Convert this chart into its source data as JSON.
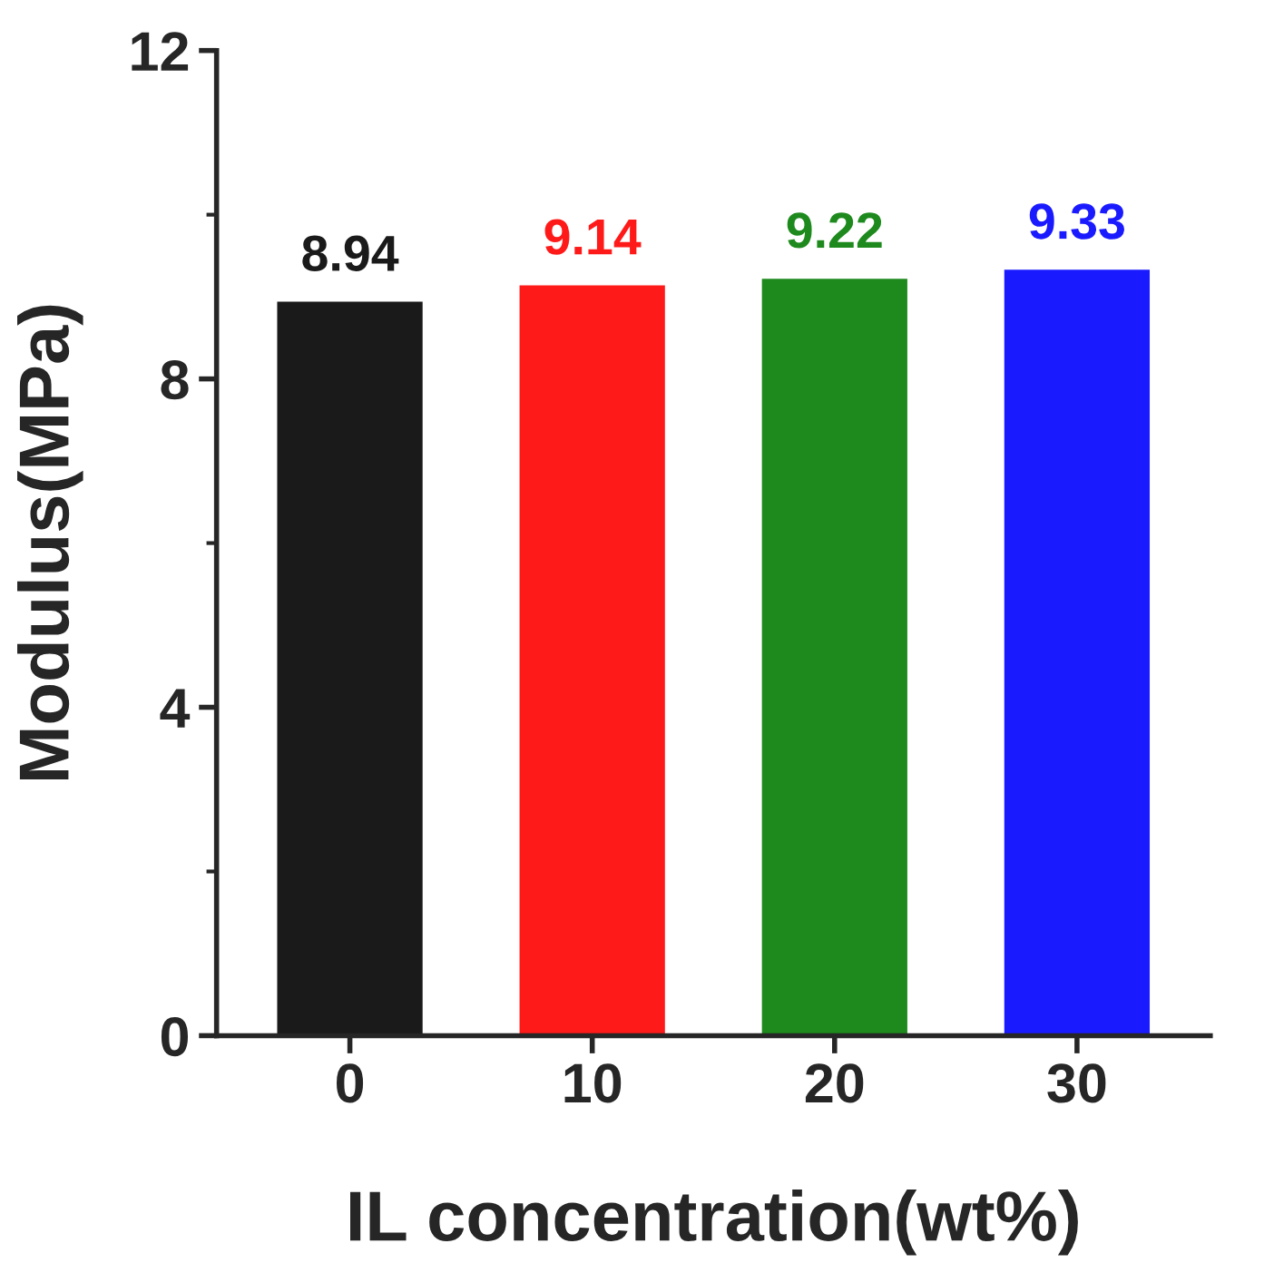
{
  "chart_data": {
    "type": "bar",
    "xlabel": "IL concentration(wt%)",
    "ylabel": "Modulus(MPa)",
    "categories": [
      "0",
      "10",
      "20",
      "30"
    ],
    "values": [
      8.94,
      9.14,
      9.22,
      9.33
    ],
    "colors": [
      "#1a1a1a",
      "#ff1a1a",
      "#1e8a1e",
      "#1a1aff"
    ],
    "ylim": [
      0,
      12
    ],
    "yticks": [
      0,
      4,
      8,
      12
    ],
    "grid": false,
    "data_labels": true
  }
}
